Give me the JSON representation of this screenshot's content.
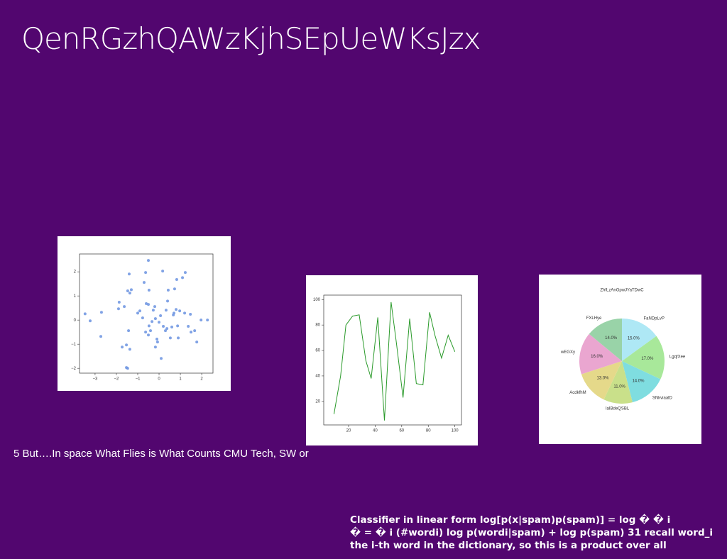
{
  "header": {
    "title": "QenRGzhQAWzKjhSEpUeWKsJzx"
  },
  "caption": "5 But….In space What Flies is What Counts CMU Tech, SW or",
  "body": {
    "lines": [
      "Classifier in linear form log[p(x|spam)p(spam)] = log � � i",
      "� = � i (#wordi) log p(wordi|spam) + log p(spam) 31 recall word_i",
      "the i-th word in the dictionary, so this is a product over all"
    ]
  },
  "chart_data": [
    {
      "type": "scatter",
      "color": "#6b93e0",
      "x": [
        -3.47,
        -3.23,
        -2.7,
        -2.73,
        -1.87,
        -1.9,
        -1.63,
        -1.73,
        -1.53,
        -1.37,
        -1.53,
        -1.47,
        -1.43,
        -1.4,
        -1.47,
        -1.3,
        -1.37,
        -1.0,
        -0.9,
        -0.77,
        -0.63,
        -0.7,
        -0.5,
        -0.6,
        -0.5,
        -0.47,
        -0.63,
        -0.5,
        -0.4,
        -0.47,
        -0.33,
        -0.27,
        -0.2,
        -0.17,
        -0.1,
        -0.17,
        -0.07,
        0.0,
        0.07,
        0.17,
        0.1,
        0.2,
        0.3,
        0.37,
        0.33,
        0.4,
        0.43,
        0.53,
        0.6,
        0.67,
        0.7,
        0.73,
        0.8,
        0.83,
        0.9,
        0.87,
        0.97,
        1.1,
        1.2,
        1.23,
        1.37,
        1.47,
        1.5,
        1.67,
        1.77,
        1.97,
        2.27
      ],
      "y": [
        0.26,
        -0.03,
        0.32,
        -0.68,
        0.74,
        0.47,
        0.56,
        -1.12,
        -1.03,
        -1.21,
        -1.97,
        -2.0,
        -0.44,
        1.91,
        1.21,
        1.26,
        1.12,
        0.29,
        0.38,
        0.09,
        1.97,
        1.56,
        2.47,
        0.68,
        0.65,
        1.24,
        -0.5,
        -0.62,
        -0.44,
        -0.24,
        -0.06,
        0.41,
        0.56,
        0.06,
        -0.79,
        -1.12,
        -0.91,
        -0.09,
        0.18,
        2.03,
        -1.59,
        -0.26,
        -0.44,
        -0.35,
        0.41,
        0.79,
        1.24,
        -0.74,
        -0.29,
        0.21,
        0.29,
        1.29,
        0.44,
        1.68,
        -0.74,
        -0.24,
        0.38,
        1.76,
        0.29,
        1.97,
        -0.26,
        0.24,
        -0.5,
        -0.44,
        -0.91,
        0.0,
        0.0
      ],
      "xlim": [
        -3.73,
        2.53
      ],
      "ylim": [
        -2.2,
        2.74
      ],
      "xticks": [
        {
          "value": -3,
          "label": "−3"
        },
        {
          "value": -2,
          "label": "−2"
        },
        {
          "value": -1,
          "label": "−1"
        },
        0,
        1,
        2
      ],
      "yticks": [
        {
          "value": -2,
          "label": "−2"
        },
        {
          "value": -1,
          "label": "−1"
        },
        0,
        1,
        2
      ]
    },
    {
      "type": "line",
      "color": "#2a9a2a",
      "x": [
        9,
        14,
        18,
        23,
        28,
        33,
        37,
        42,
        47,
        52,
        56,
        61,
        66,
        71,
        76,
        81,
        85,
        90,
        95,
        100
      ],
      "values": [
        10,
        40,
        80,
        87,
        88,
        52,
        38,
        86,
        5,
        98,
        66,
        23,
        85,
        34,
        33,
        90,
        72,
        54,
        72,
        59
      ],
      "xlim": [
        1.3,
        105
      ],
      "ylim": [
        1.5,
        103.5
      ],
      "xticks": [
        20,
        40,
        60,
        80,
        100
      ],
      "yticks": [
        20,
        40,
        60,
        80,
        100
      ]
    },
    {
      "type": "pie",
      "title": "ZhfLzAnGpwJYaTDwC",
      "categories": [
        "FaNDpLvP",
        "LgqfXee",
        "SNkviaalD",
        "laIBdeQSBL",
        "AcdkfhM",
        "wEGXy",
        "FXLHye"
      ],
      "values": [
        15,
        17,
        14,
        11,
        13,
        16,
        14
      ],
      "value_labels": [
        "15.0%",
        "17.0%",
        "14.0%",
        "11.0%",
        "13.0%",
        "16.0%",
        "14.0%"
      ],
      "colors": [
        "#aee8f5",
        "#a8e89a",
        "#7fdde0",
        "#c9e08a",
        "#e5d98a",
        "#eaa6d0",
        "#99d3a8"
      ]
    }
  ]
}
